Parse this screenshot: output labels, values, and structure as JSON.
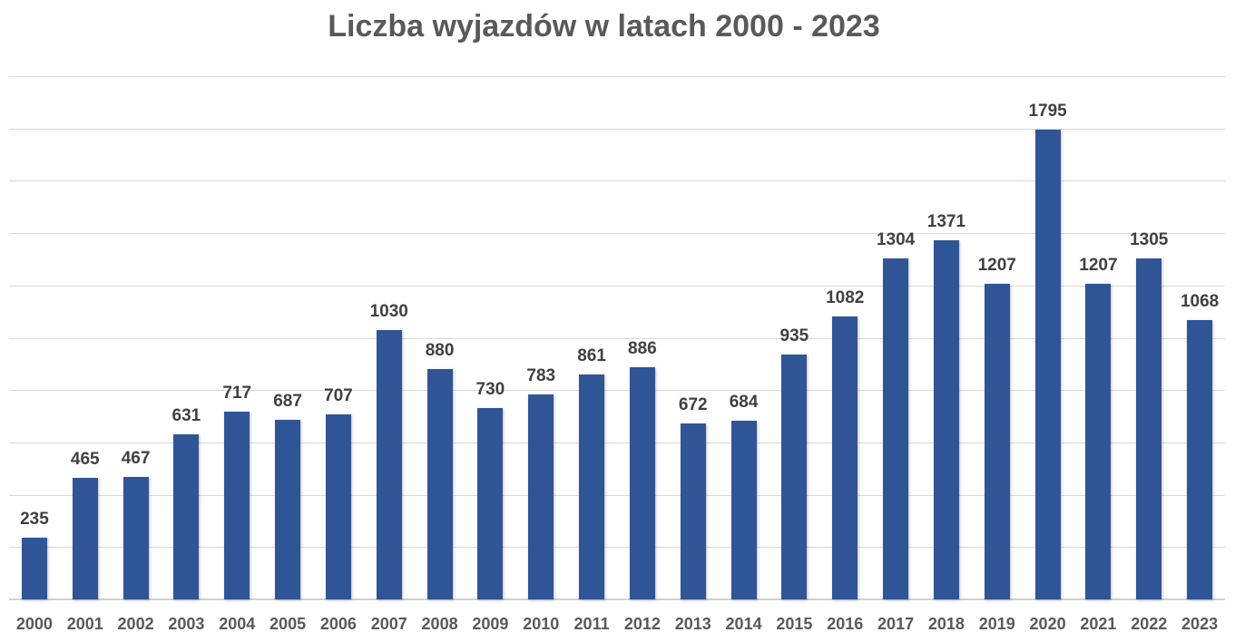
{
  "chart_data": {
    "type": "bar",
    "title": "Liczba wyjazdów w latach 2000 - 2023",
    "xlabel": "",
    "ylabel": "",
    "ylim": [
      0,
      2000
    ],
    "y_gridline_step": 200,
    "grid": true,
    "legend": null,
    "bar_color": "#2F5597",
    "data_labels": true,
    "categories": [
      "2000",
      "2001",
      "2002",
      "2003",
      "2004",
      "2005",
      "2006",
      "2007",
      "2008",
      "2009",
      "2010",
      "2011",
      "2012",
      "2013",
      "2014",
      "2015",
      "2016",
      "2017",
      "2018",
      "2019",
      "2020",
      "2021",
      "2022",
      "2023"
    ],
    "values": [
      235,
      465,
      467,
      631,
      717,
      687,
      707,
      1030,
      880,
      730,
      783,
      861,
      886,
      672,
      684,
      935,
      1082,
      1304,
      1371,
      1207,
      1795,
      1207,
      1305,
      1068
    ]
  }
}
